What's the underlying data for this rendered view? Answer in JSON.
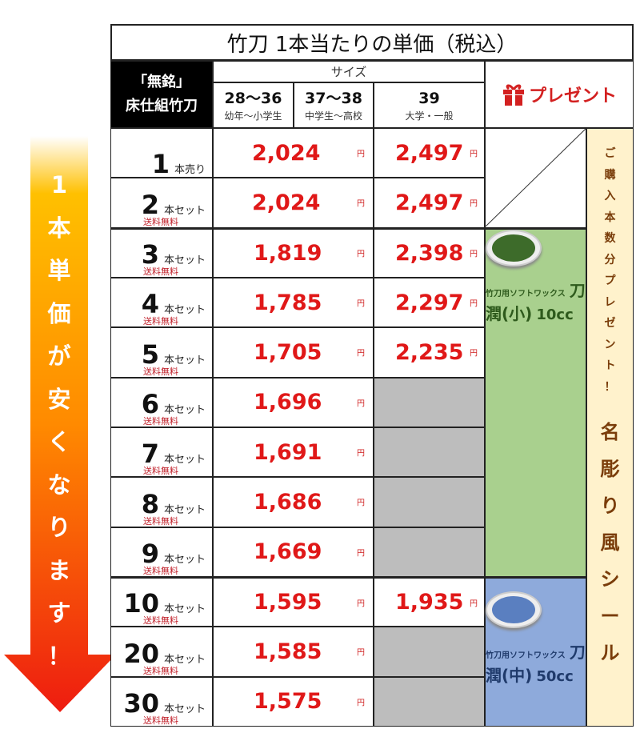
{
  "title": "竹刀 1本当たりの単価（税込）",
  "brand": {
    "line1": "「無銘」",
    "line2": "床仕組竹刀"
  },
  "size_header": "サイズ",
  "sizes": [
    {
      "size": "28〜36",
      "group": "幼年〜小学生"
    },
    {
      "size": "37〜38",
      "group": "中学生〜高校"
    },
    {
      "size": "39",
      "group": "大学・一般"
    }
  ],
  "present": {
    "label": "プレゼント",
    "icon": "gift-icon",
    "color": "#d32020"
  },
  "yen": "円",
  "free_shipping": "送料無料",
  "rows": [
    {
      "qty": "1",
      "unit": "本売り",
      "free": false,
      "small": "2,024",
      "large": "2,497"
    },
    {
      "qty": "2",
      "unit": "本セット",
      "free": true,
      "small": "2,024",
      "large": "2,497"
    },
    {
      "qty": "3",
      "unit": "本セット",
      "free": true,
      "small": "1,819",
      "large": "2,398"
    },
    {
      "qty": "4",
      "unit": "本セット",
      "free": true,
      "small": "1,785",
      "large": "2,297"
    },
    {
      "qty": "5",
      "unit": "本セット",
      "free": true,
      "small": "1,705",
      "large": "2,235"
    },
    {
      "qty": "6",
      "unit": "本セット",
      "free": true,
      "small": "1,696",
      "large": null
    },
    {
      "qty": "7",
      "unit": "本セット",
      "free": true,
      "small": "1,691",
      "large": null
    },
    {
      "qty": "8",
      "unit": "本セット",
      "free": true,
      "small": "1,686",
      "large": null
    },
    {
      "qty": "9",
      "unit": "本セット",
      "free": true,
      "small": "1,669",
      "large": null
    },
    {
      "qty": "10",
      "unit": "本セット",
      "free": true,
      "small": "1,595",
      "large": "1,935"
    },
    {
      "qty": "20",
      "unit": "本セット",
      "free": true,
      "small": "1,585",
      "large": null
    },
    {
      "qty": "30",
      "unit": "本セット",
      "free": true,
      "small": "1,575",
      "large": null
    }
  ],
  "gifts": [
    {
      "caption": "竹刀用ソフトワックス",
      "name": "刀潤(小)",
      "volume": "10cc",
      "bg": "#a9d08e",
      "color": "#2e5a1c",
      "tin": "#3d6b2a"
    },
    {
      "caption": "竹刀用ソフトワックス",
      "name": "刀潤(中)",
      "volume": "50cc",
      "bg": "#8eaadb",
      "color": "#1f3a6b",
      "tin": "#5a7fc0"
    }
  ],
  "side_note_top": "ご購入本数分プレゼント！",
  "side_note_bottom": "名彫り風シール",
  "arrow_text": "1本単価が安くなります！"
}
